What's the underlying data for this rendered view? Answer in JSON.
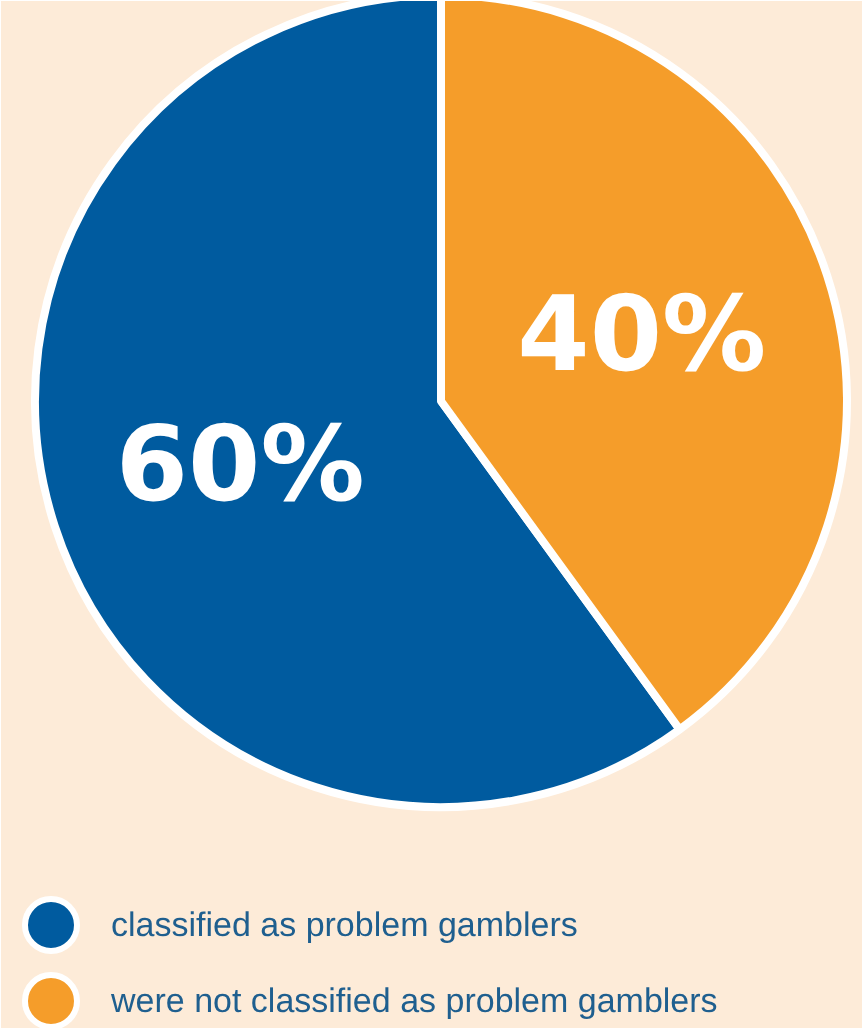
{
  "chart_data": {
    "type": "pie",
    "categories": [
      "classified as problem gamblers",
      "were not classified as problem gamblers"
    ],
    "values": [
      60,
      40
    ],
    "colors": [
      "#005b9f",
      "#f59d2a"
    ],
    "value_labels": [
      "60%",
      "40%"
    ],
    "legend": "bottom"
  }
}
